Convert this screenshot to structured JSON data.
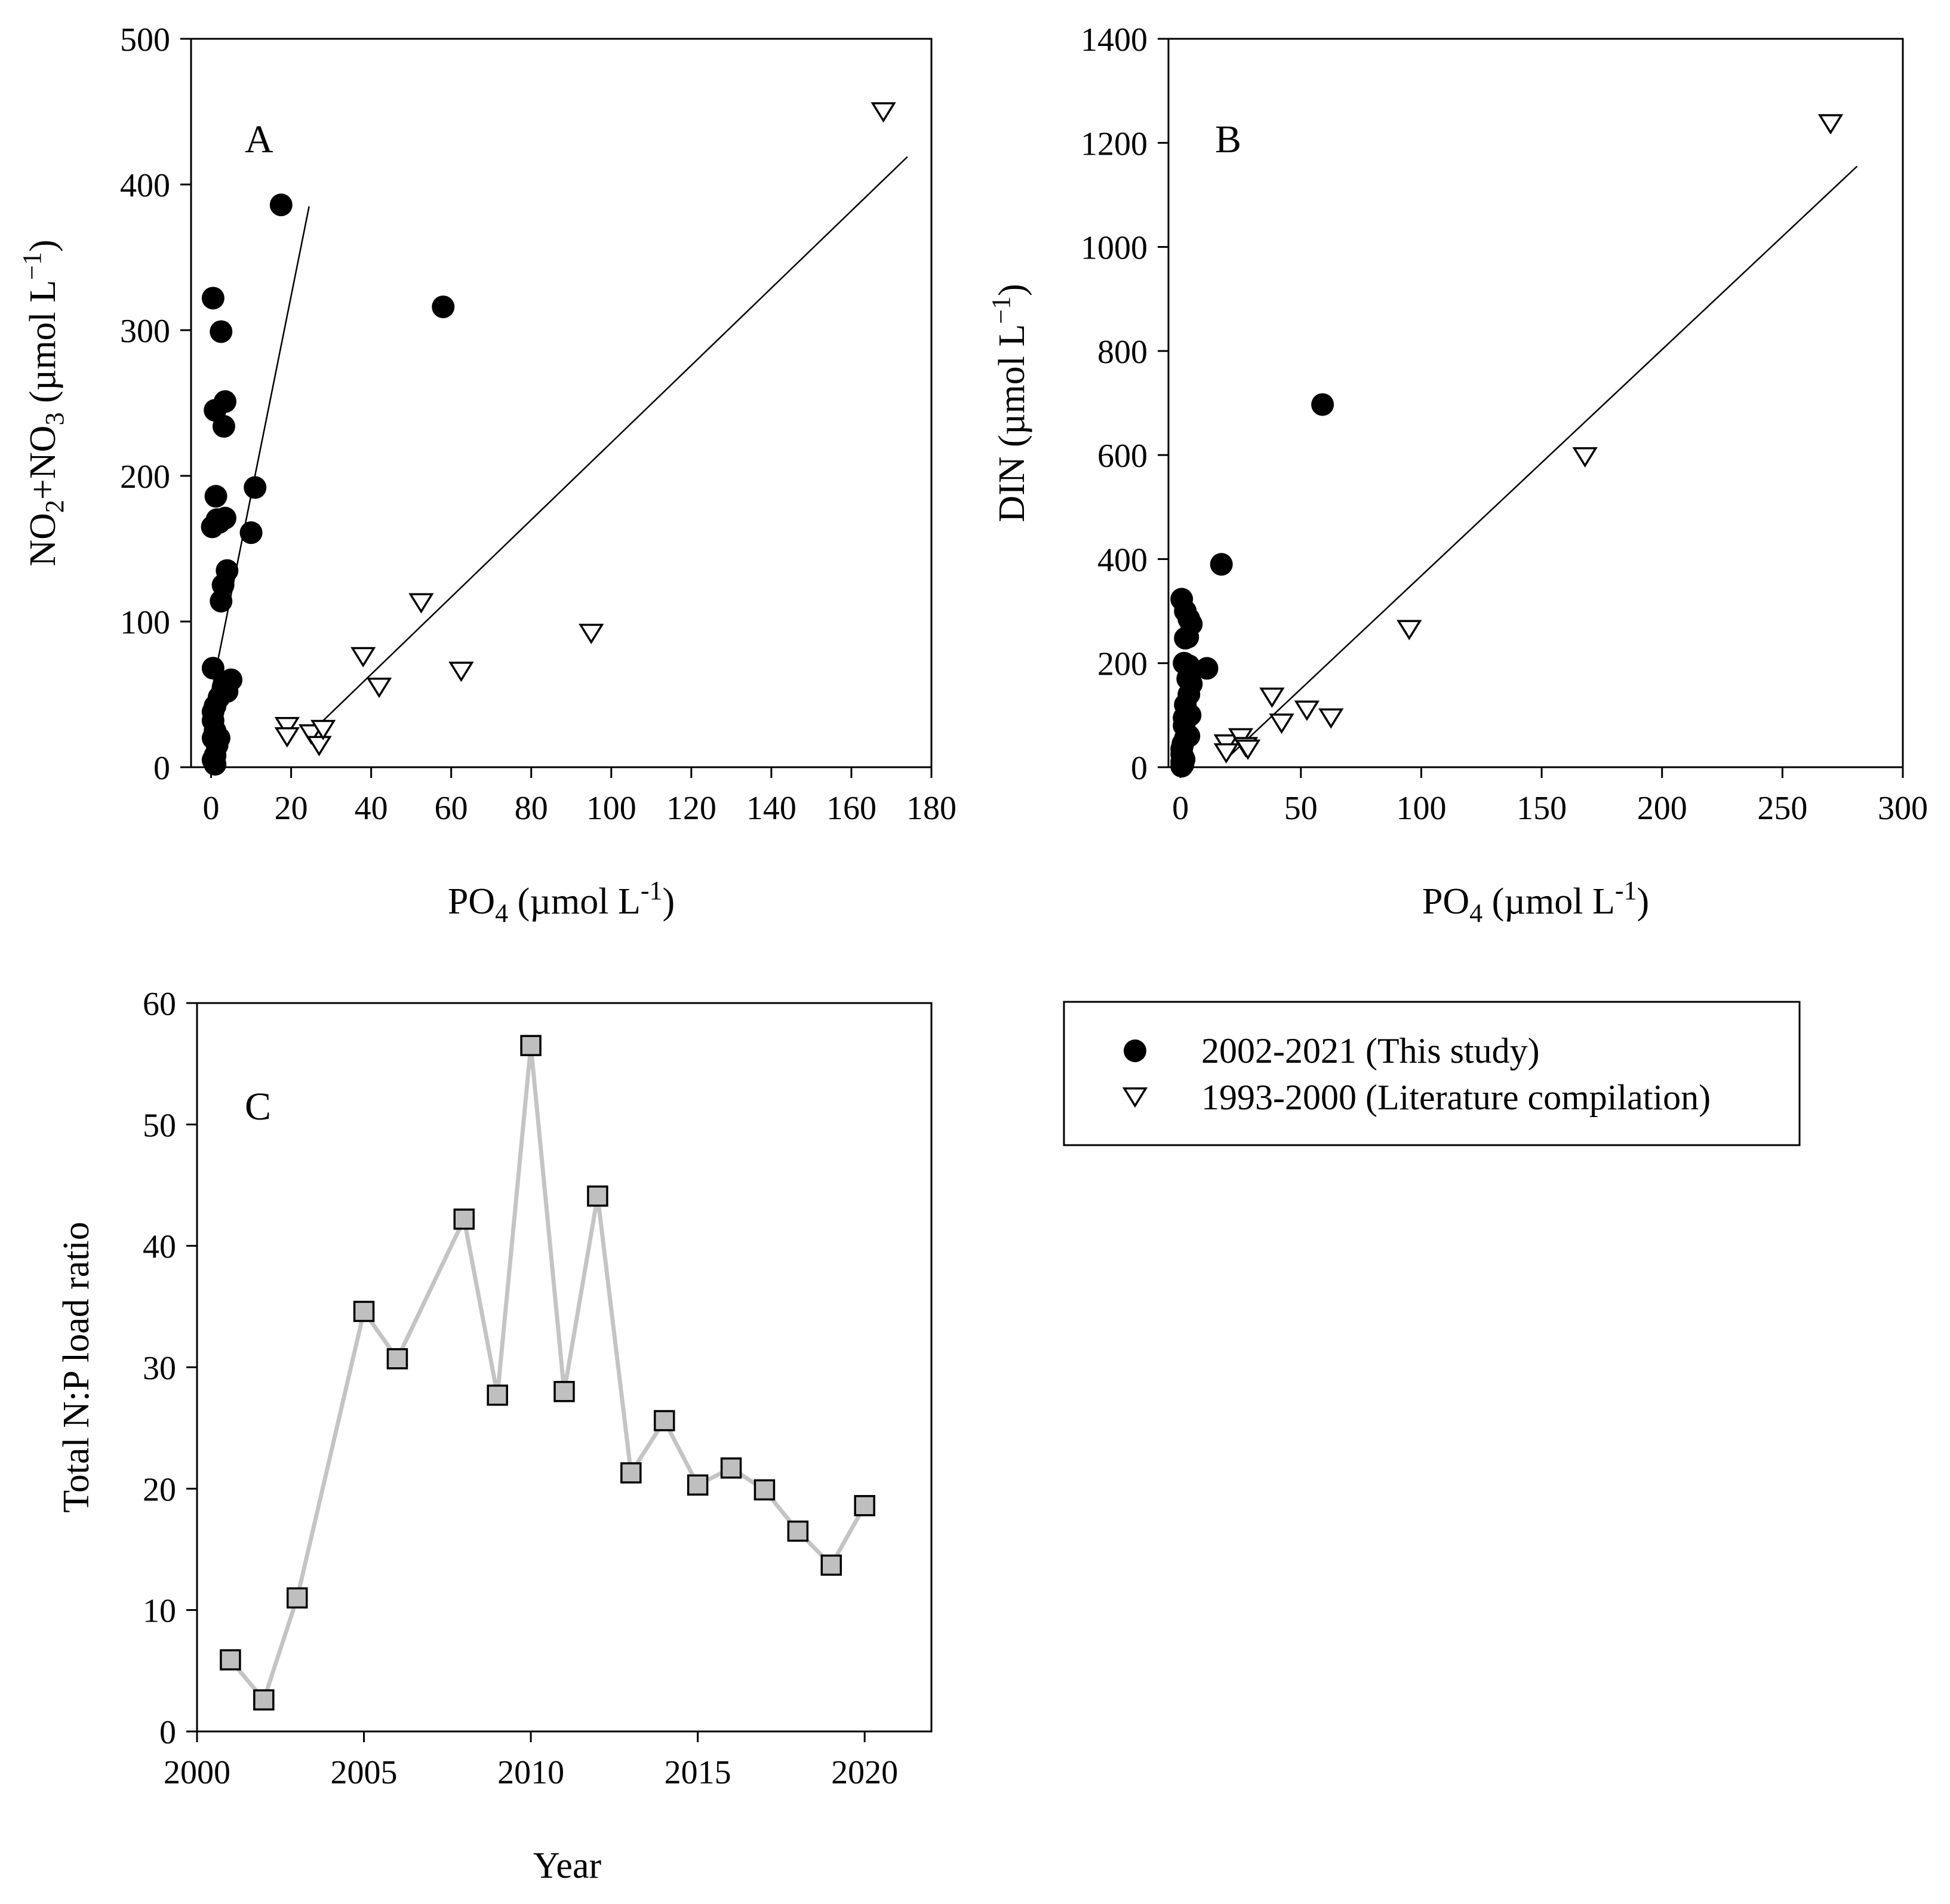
{
  "legend": {
    "entries": [
      {
        "label": "2002-2021 (This study)",
        "marker": "filled-circle"
      },
      {
        "label": "1993-2000 (Literature compilation)",
        "marker": "open-down-triangle"
      }
    ]
  },
  "colors": {
    "study_marker": "#000000",
    "literature_marker": "#ffffff",
    "series_line": "#c4c4c4",
    "series_marker": "#bfbfbf"
  },
  "chart_data": [
    {
      "panel": "A",
      "type": "scatter",
      "panel_label": "A",
      "xlabel": {
        "pre": "PO",
        "sub": "4",
        "post": " (µmol L",
        "sup": "-1",
        "end": ")"
      },
      "ylabel": {
        "p1": "NO",
        "s1": "2",
        "p2": "+NO",
        "s2": "3",
        "p3": " (µmol L",
        "sup": "−1",
        "p4": ")"
      },
      "xlim": [
        -5,
        180
      ],
      "ylim": [
        0,
        500
      ],
      "xticks": [
        0,
        20,
        40,
        60,
        80,
        100,
        120,
        140,
        160,
        180
      ],
      "yticks": [
        0,
        100,
        200,
        300,
        400,
        500
      ],
      "series": [
        {
          "name": "2002-2021 (This study)",
          "marker": "filled-circle",
          "x": [
            0.5,
            1,
            0.3,
            1.2,
            2.5,
            3.5,
            3.2,
            2,
            1.5,
            0.5,
            3.5,
            11,
            10,
            4,
            3,
            2.5,
            5,
            4,
            3,
            2,
            1,
            0.5,
            0.5,
            1,
            0.5,
            1.5,
            2,
            1,
            0.5,
            1,
            17.5,
            58
          ],
          "y": [
            322,
            245,
            165,
            186,
            299,
            251,
            234,
            168,
            170,
            68,
            171,
            192,
            161,
            135,
            125,
            114,
            60,
            52,
            55,
            48,
            42,
            38,
            32,
            25,
            20,
            15,
            20,
            8,
            5,
            2,
            386,
            316
          ]
        },
        {
          "name": "1993-2000 (Literature compilation)",
          "marker": "open-down-triangle",
          "x": [
            19,
            19,
            25,
            27,
            28,
            38,
            42,
            52.5,
            62.5,
            95,
            168
          ],
          "y": [
            28,
            21,
            23,
            15,
            26,
            76,
            55,
            113,
            66,
            92,
            450
          ]
        }
      ],
      "fit_lines": [
        {
          "x": [
            0,
            24.5
          ],
          "y": [
            50,
            385
          ]
        },
        {
          "x": [
            25,
            174
          ],
          "y": [
            24,
            419
          ]
        }
      ]
    },
    {
      "panel": "B",
      "type": "scatter",
      "panel_label": "B",
      "xlabel": {
        "pre": "PO",
        "sub": "4",
        "post": " (µmol L",
        "sup": "-1",
        "end": ")"
      },
      "ylabel": {
        "pre": "DIN (µmol L",
        "sup": "−1",
        "end": ")"
      },
      "xlim": [
        -5,
        300
      ],
      "ylim": [
        0,
        1400
      ],
      "xticks": [
        0,
        50,
        100,
        150,
        200,
        250,
        300
      ],
      "yticks": [
        0,
        200,
        400,
        600,
        800,
        1000,
        1200,
        1400
      ],
      "series": [
        {
          "name": "2002-2021 (This study)",
          "marker": "filled-circle",
          "x": [
            0.5,
            2,
            3.5,
            4.5,
            3,
            2,
            1.5,
            3.5,
            4,
            3,
            4.5,
            11,
            3.5,
            2,
            1.5,
            1.5,
            4,
            3.5,
            2,
            1,
            0.5,
            0.5,
            1,
            1.5,
            0.5,
            1,
            0.5,
            17,
            59
          ],
          "y": [
            323,
            300,
            285,
            275,
            250,
            248,
            200,
            195,
            185,
            170,
            160,
            190,
            140,
            120,
            95,
            80,
            100,
            60,
            55,
            45,
            35,
            25,
            20,
            15,
            10,
            5,
            2,
            390,
            697
          ]
        },
        {
          "name": "1993-2000 (Literature compilation)",
          "marker": "open-down-triangle",
          "x": [
            19,
            19,
            25,
            27,
            28,
            38,
            42,
            52.5,
            62.5,
            95,
            168,
            270
          ],
          "y": [
            45,
            28,
            57,
            40,
            35,
            135,
            85,
            110,
            95,
            265,
            597,
            1237
          ]
        }
      ],
      "fit_lines": [
        {
          "x": [
            20,
            281
          ],
          "y": [
            20,
            1155
          ]
        }
      ]
    },
    {
      "panel": "C",
      "type": "line",
      "panel_label": "C",
      "xlabel": "Year",
      "ylabel": "Total N:P load ratio",
      "xlim": [
        2000,
        2022
      ],
      "ylim": [
        0,
        60
      ],
      "xticks": [
        2000,
        2005,
        2010,
        2015,
        2020
      ],
      "yticks": [
        0,
        10,
        20,
        30,
        40,
        50,
        60
      ],
      "series": [
        {
          "name": "Total N:P load ratio",
          "marker": "square",
          "x": [
            2001,
            2002,
            2003,
            2005,
            2006,
            2008,
            2009,
            2010,
            2011,
            2012,
            2013,
            2014,
            2015,
            2016,
            2017,
            2018,
            2019,
            2020
          ],
          "y": [
            5.9,
            2.6,
            11.0,
            34.6,
            30.7,
            42.2,
            27.7,
            56.5,
            28.0,
            44.1,
            21.3,
            25.6,
            20.3,
            21.7,
            19.9,
            16.5,
            13.7,
            18.6
          ]
        }
      ]
    }
  ]
}
